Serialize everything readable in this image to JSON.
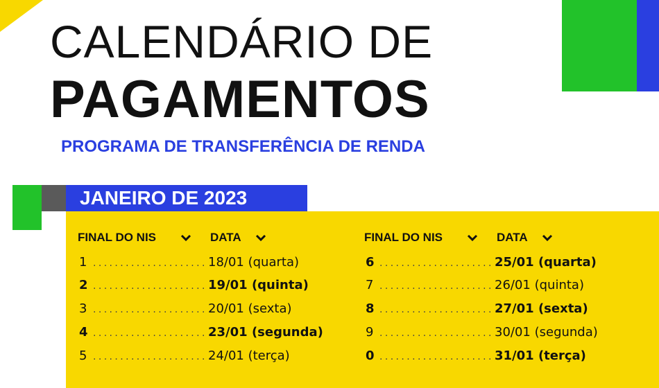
{
  "header": {
    "title_line1": "CALENDÁRIO DE",
    "title_line2": "PAGAMENTOS",
    "subtitle": "PROGRAMA DE TRANSFERÊNCIA DE RENDA"
  },
  "month": "JANEIRO DE 2023",
  "columns": [
    {
      "headers": [
        "FINAL DO NIS",
        "DATA"
      ],
      "rows": [
        {
          "nis": "1",
          "date": "18/01 (quarta)",
          "bold": false
        },
        {
          "nis": "2",
          "date": "19/01 (quinta)",
          "bold": true
        },
        {
          "nis": "3",
          "date": "20/01 (sexta)",
          "bold": false
        },
        {
          "nis": "4",
          "date": "23/01 (segunda)",
          "bold": true
        },
        {
          "nis": "5",
          "date": "24/01 (terça)",
          "bold": false
        }
      ]
    },
    {
      "headers": [
        "FINAL DO NIS",
        "DATA"
      ],
      "rows": [
        {
          "nis": "6",
          "date": "25/01 (quarta)",
          "bold": true
        },
        {
          "nis": "7",
          "date": "26/01 (quinta)",
          "bold": false
        },
        {
          "nis": "8",
          "date": "27/01 (sexta)",
          "bold": true
        },
        {
          "nis": "9",
          "date": "30/01 (segunda)",
          "bold": false
        },
        {
          "nis": "0",
          "date": "31/01 (terça)",
          "bold": true
        }
      ]
    }
  ]
}
